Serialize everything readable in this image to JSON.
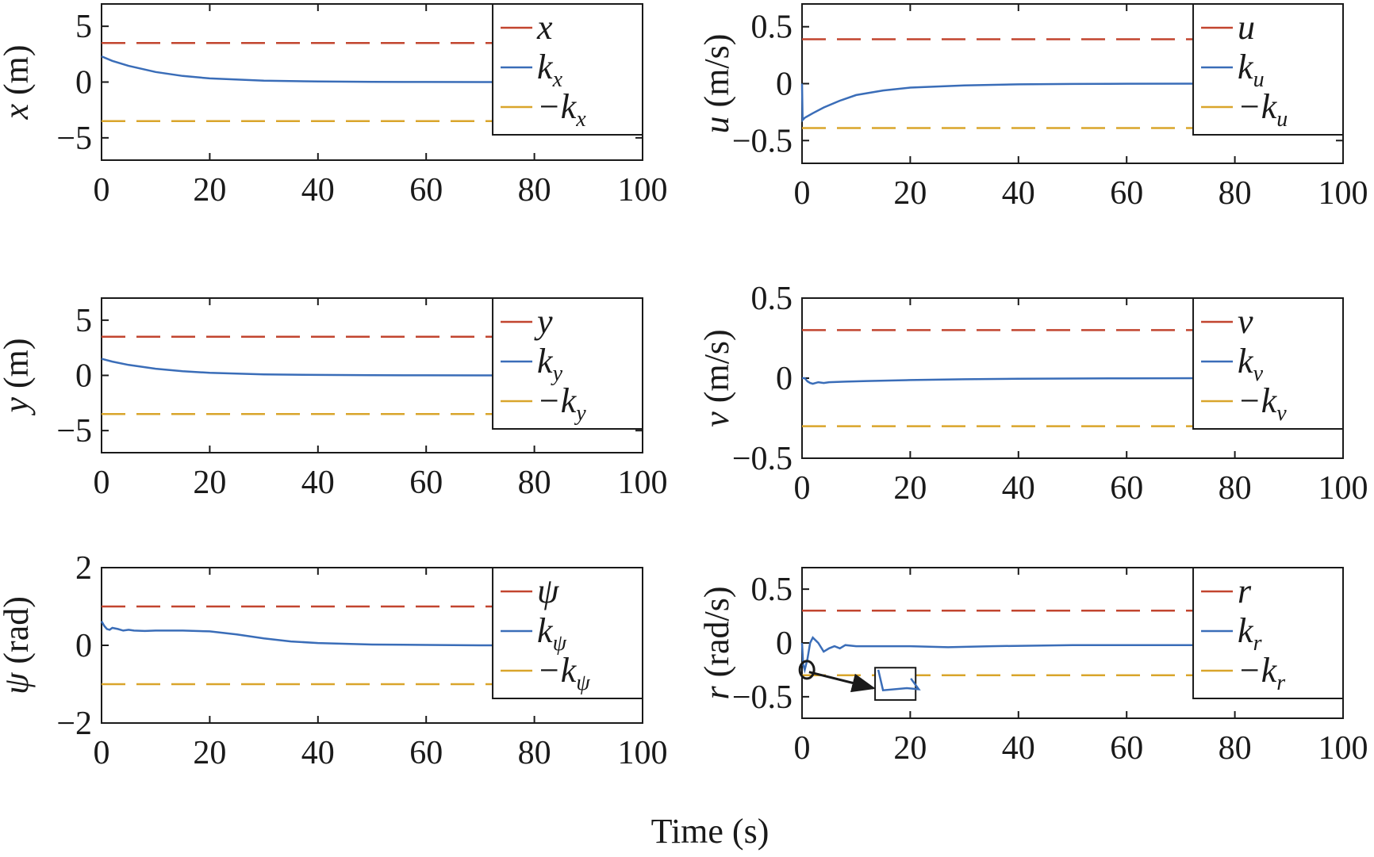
{
  "figure": {
    "xlabel": "Time (s)"
  },
  "colors": {
    "upper": "#C2452F",
    "curve": "#3A6DB8",
    "lower": "#D9A52B",
    "axis": "#1a1a1a"
  },
  "chart_data": [
    {
      "id": "x",
      "type": "line",
      "ylabel_var": "x",
      "ylabel_unit": " (m)",
      "xlim": [
        0,
        100
      ],
      "ylim": [
        -7,
        7
      ],
      "xticks": [
        0,
        20,
        40,
        60,
        80,
        100
      ],
      "yticks": [
        5,
        0,
        -5
      ],
      "ytick_labels": [
        "5",
        "0",
        "−5"
      ],
      "legend_position": "top-right",
      "legend": [
        {
          "main": "x",
          "sub": ""
        },
        {
          "main": "k",
          "sub": "x"
        },
        {
          "main": "−k",
          "sub": "x"
        }
      ],
      "series": [
        {
          "role": "upper",
          "style": "dashed",
          "x": [
            0,
            80
          ],
          "y": [
            3.5,
            3.5
          ]
        },
        {
          "role": "curve",
          "style": "solid",
          "x": [
            0,
            2,
            5,
            10,
            15,
            20,
            30,
            40,
            50,
            60,
            70,
            80
          ],
          "y": [
            2.3,
            1.9,
            1.45,
            0.9,
            0.55,
            0.33,
            0.12,
            0.05,
            0.02,
            0.01,
            0.0,
            0.0
          ]
        },
        {
          "role": "lower",
          "style": "dashed",
          "x": [
            0,
            80
          ],
          "y": [
            -3.5,
            -3.5
          ]
        }
      ]
    },
    {
      "id": "u",
      "type": "line",
      "ylabel_var": "u",
      "ylabel_unit": " (m/s)",
      "xlim": [
        0,
        100
      ],
      "ylim": [
        -0.7,
        0.7
      ],
      "xticks": [
        0,
        20,
        40,
        60,
        80,
        100
      ],
      "yticks": [
        0.5,
        0,
        -0.5
      ],
      "ytick_labels": [
        "0.5",
        "0",
        "−0.5"
      ],
      "legend_position": "top-right",
      "legend": [
        {
          "main": "u",
          "sub": ""
        },
        {
          "main": "k",
          "sub": "u"
        },
        {
          "main": "−k",
          "sub": "u"
        }
      ],
      "series": [
        {
          "role": "upper",
          "style": "dashed",
          "x": [
            0,
            80
          ],
          "y": [
            0.39,
            0.39
          ]
        },
        {
          "role": "curve",
          "style": "solid",
          "x": [
            0,
            0.1,
            0.5,
            2,
            4,
            7,
            10,
            15,
            20,
            30,
            40,
            50,
            60,
            80
          ],
          "y": [
            0.0,
            -0.32,
            -0.3,
            -0.26,
            -0.21,
            -0.15,
            -0.1,
            -0.06,
            -0.035,
            -0.015,
            -0.006,
            -0.003,
            -0.001,
            0.0
          ]
        },
        {
          "role": "lower",
          "style": "dashed",
          "x": [
            0,
            80
          ],
          "y": [
            -0.39,
            -0.39
          ]
        }
      ]
    },
    {
      "id": "y",
      "type": "line",
      "ylabel_var": "y",
      "ylabel_unit": " (m)",
      "xlim": [
        0,
        100
      ],
      "ylim": [
        -7,
        7
      ],
      "xticks": [
        0,
        20,
        40,
        60,
        80,
        100
      ],
      "yticks": [
        5,
        0,
        -5
      ],
      "ytick_labels": [
        "5",
        "0",
        "−5"
      ],
      "legend_position": "top-right",
      "legend": [
        {
          "main": "y",
          "sub": ""
        },
        {
          "main": "k",
          "sub": "y"
        },
        {
          "main": "−k",
          "sub": "y"
        }
      ],
      "series": [
        {
          "role": "upper",
          "style": "dashed",
          "x": [
            0,
            80
          ],
          "y": [
            3.5,
            3.5
          ]
        },
        {
          "role": "curve",
          "style": "solid",
          "x": [
            0,
            2,
            5,
            10,
            15,
            20,
            30,
            40,
            50,
            60,
            70,
            80
          ],
          "y": [
            1.5,
            1.25,
            0.95,
            0.6,
            0.38,
            0.23,
            0.09,
            0.04,
            0.015,
            0.005,
            0.0,
            0.0
          ]
        },
        {
          "role": "lower",
          "style": "dashed",
          "x": [
            0,
            80
          ],
          "y": [
            -3.5,
            -3.5
          ]
        }
      ]
    },
    {
      "id": "v",
      "type": "line",
      "ylabel_var": "v",
      "ylabel_unit": " (m/s)",
      "xlim": [
        0,
        100
      ],
      "ylim": [
        -0.5,
        0.5
      ],
      "xticks": [
        0,
        20,
        40,
        60,
        80,
        100
      ],
      "yticks": [
        0.5,
        0,
        -0.5
      ],
      "ytick_labels": [
        "0.5",
        "0",
        "−0.5"
      ],
      "legend_position": "top-right",
      "legend": [
        {
          "main": "v",
          "sub": ""
        },
        {
          "main": "k",
          "sub": "v"
        },
        {
          "main": "−k",
          "sub": "v"
        }
      ],
      "series": [
        {
          "role": "upper",
          "style": "dashed",
          "x": [
            0,
            80
          ],
          "y": [
            0.3,
            0.3
          ]
        },
        {
          "role": "curve",
          "style": "solid",
          "x": [
            0,
            0.5,
            1,
            1.5,
            2,
            3,
            4,
            5,
            8,
            12,
            20,
            30,
            40,
            60,
            80
          ],
          "y": [
            0.0,
            0.0,
            -0.02,
            -0.03,
            -0.035,
            -0.025,
            -0.03,
            -0.025,
            -0.022,
            -0.018,
            -0.012,
            -0.007,
            -0.004,
            -0.001,
            0.0
          ]
        },
        {
          "role": "lower",
          "style": "dashed",
          "x": [
            0,
            80
          ],
          "y": [
            -0.3,
            -0.3
          ]
        }
      ]
    },
    {
      "id": "psi",
      "type": "line",
      "ylabel_var": "ψ",
      "ylabel_unit": " (rad)",
      "xlim": [
        0,
        100
      ],
      "ylim": [
        -2,
        2
      ],
      "xticks": [
        0,
        20,
        40,
        60,
        80,
        100
      ],
      "yticks": [
        2,
        0,
        -2
      ],
      "ytick_labels": [
        "2",
        "0",
        "−2"
      ],
      "legend_position": "top-right",
      "legend": [
        {
          "main": "ψ",
          "sub": ""
        },
        {
          "main": "k",
          "sub": "ψ"
        },
        {
          "main": "−k",
          "sub": "ψ"
        }
      ],
      "series": [
        {
          "role": "upper",
          "style": "dashed",
          "x": [
            0,
            80
          ],
          "y": [
            1.0,
            1.0
          ]
        },
        {
          "role": "curve",
          "style": "solid",
          "x": [
            0,
            0.5,
            1,
            1.5,
            2,
            3,
            4,
            5,
            6,
            8,
            10,
            15,
            20,
            25,
            30,
            35,
            40,
            50,
            60,
            70,
            80
          ],
          "y": [
            0.62,
            0.5,
            0.42,
            0.4,
            0.45,
            0.42,
            0.38,
            0.4,
            0.38,
            0.37,
            0.38,
            0.38,
            0.36,
            0.28,
            0.18,
            0.1,
            0.06,
            0.02,
            0.01,
            0.0,
            0.0
          ]
        },
        {
          "role": "lower",
          "style": "dashed",
          "x": [
            0,
            80
          ],
          "y": [
            -1.0,
            -1.0
          ]
        }
      ]
    },
    {
      "id": "r",
      "type": "line",
      "ylabel_var": "r",
      "ylabel_unit": " (rad/s)",
      "xlim": [
        0,
        100
      ],
      "ylim": [
        -0.7,
        0.7
      ],
      "xticks": [
        0,
        20,
        40,
        60,
        80,
        100
      ],
      "yticks": [
        0.5,
        0,
        -0.5
      ],
      "ytick_labels": [
        "0.5",
        "0",
        "−0.5"
      ],
      "legend_position": "top-right",
      "legend": [
        {
          "main": "r",
          "sub": ""
        },
        {
          "main": "k",
          "sub": "r"
        },
        {
          "main": "−k",
          "sub": "r"
        }
      ],
      "series": [
        {
          "role": "upper",
          "style": "dashed",
          "x": [
            0,
            80
          ],
          "y": [
            0.3,
            0.3
          ]
        },
        {
          "role": "curve",
          "style": "solid",
          "x": [
            0,
            0.2,
            0.5,
            1,
            1.5,
            2,
            3,
            4,
            5,
            6,
            7,
            8,
            10,
            15,
            20,
            27,
            35,
            50,
            80
          ],
          "y": [
            0.0,
            -0.2,
            -0.25,
            -0.15,
            0.0,
            0.05,
            0.0,
            -0.08,
            -0.05,
            -0.03,
            -0.05,
            -0.02,
            -0.03,
            -0.03,
            -0.03,
            -0.04,
            -0.03,
            -0.02,
            -0.02
          ]
        },
        {
          "role": "lower",
          "style": "dashed",
          "x": [
            0,
            80
          ],
          "y": [
            -0.3,
            -0.3
          ]
        }
      ]
    }
  ]
}
